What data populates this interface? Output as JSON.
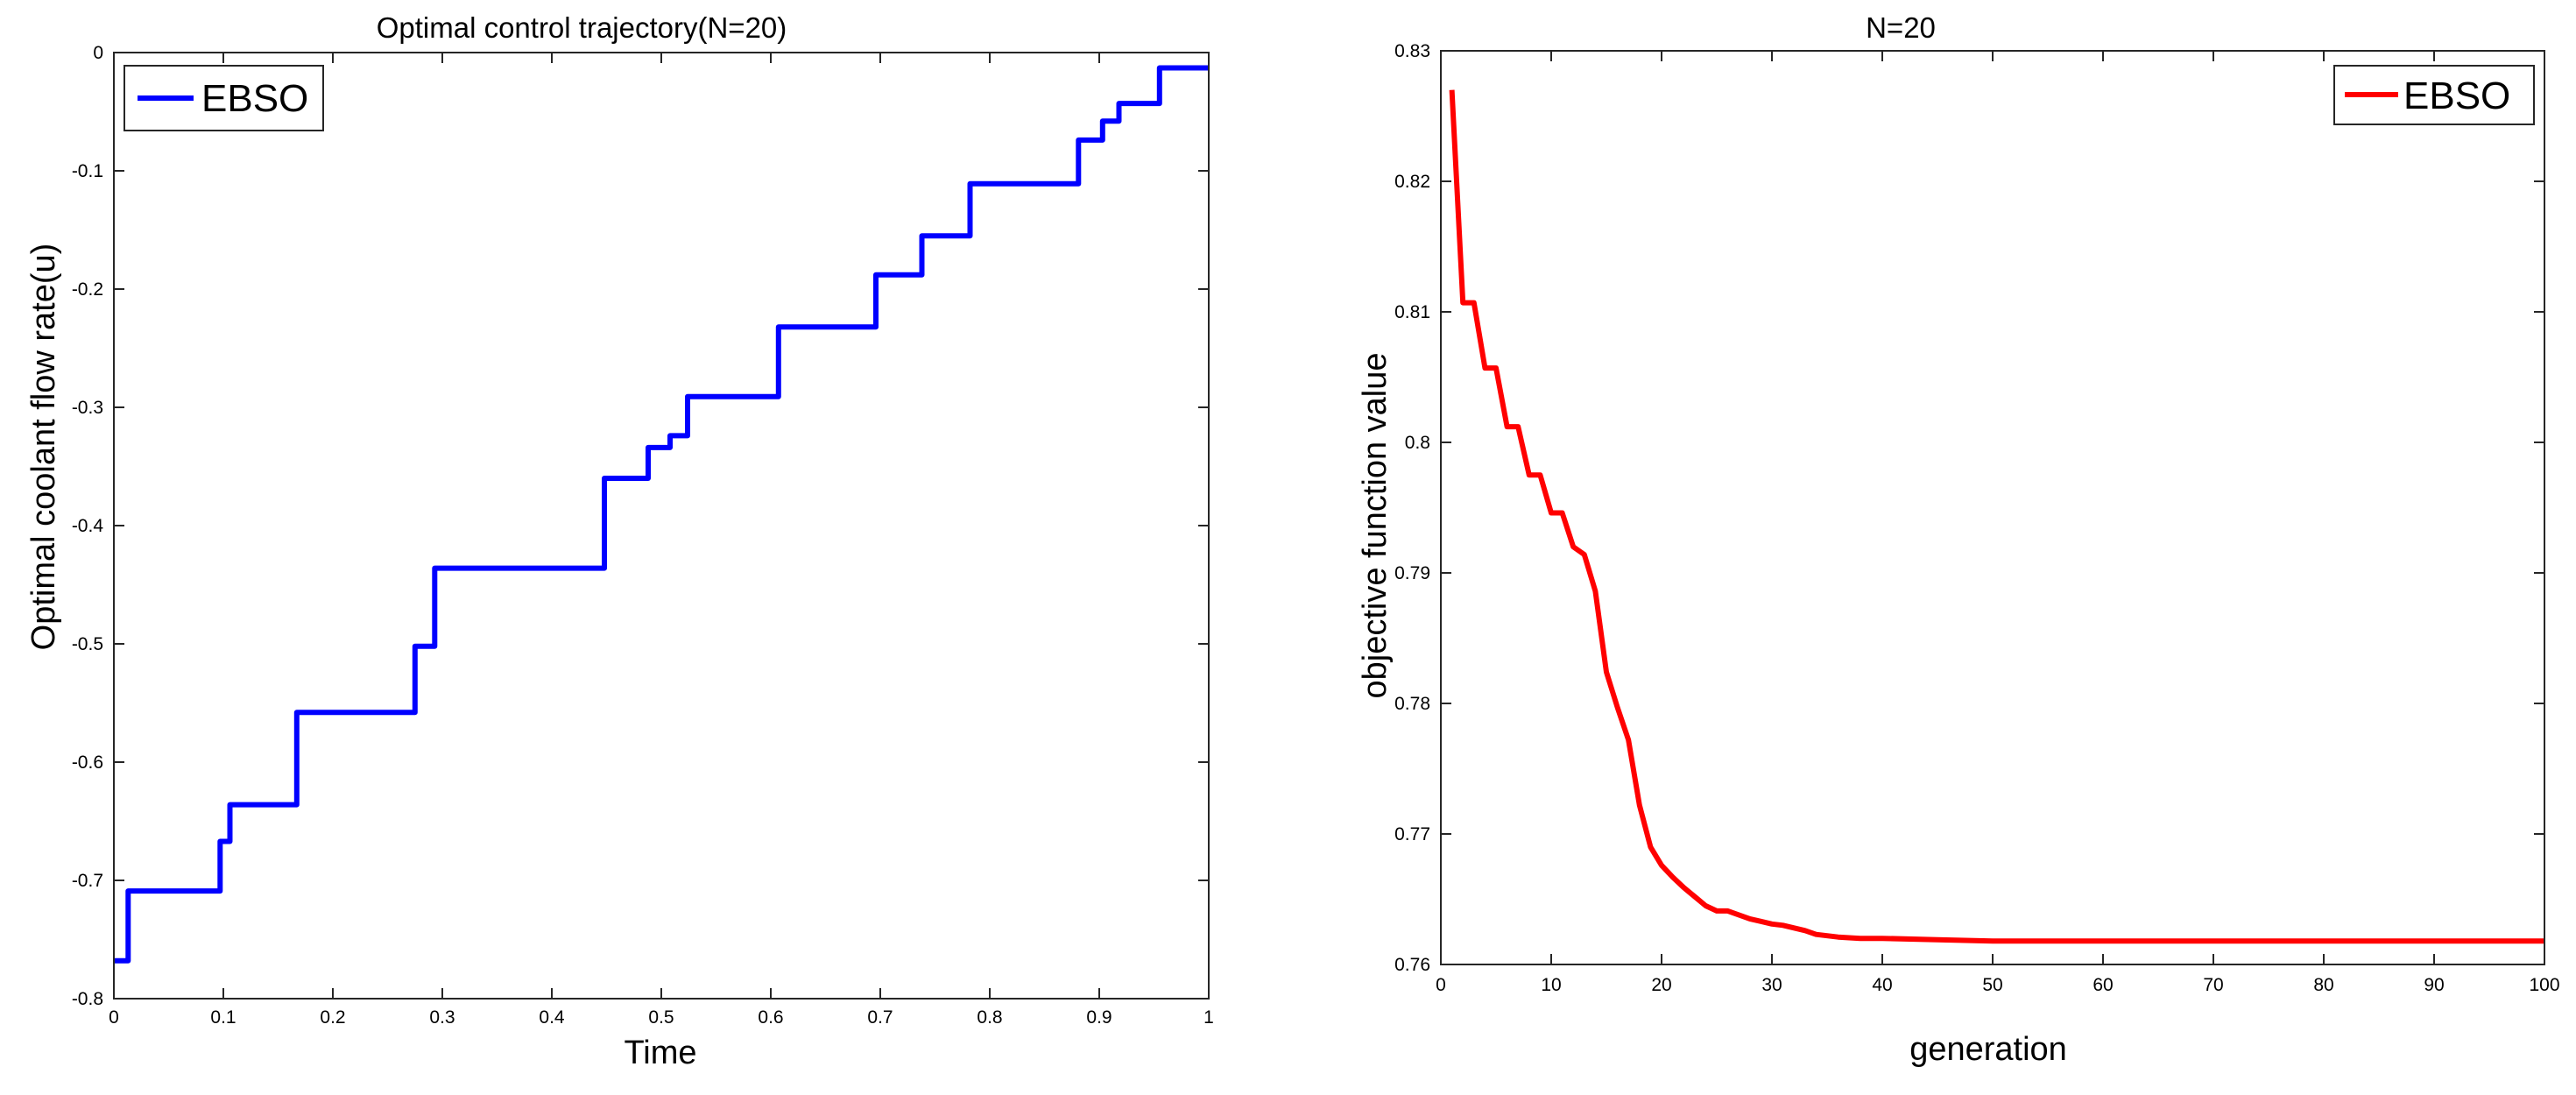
{
  "chart_data": [
    {
      "type": "line",
      "step": true,
      "title": "Optimal control trajectory(N=20)",
      "xlabel": "Time",
      "ylabel": "Optimal coolant flow rate(u)",
      "xlim": [
        0,
        1
      ],
      "ylim": [
        -0.8,
        0
      ],
      "xticks": [
        0,
        0.1,
        0.2,
        0.3,
        0.4,
        0.5,
        0.6,
        0.7,
        0.8,
        0.9,
        1
      ],
      "yticks": [
        -0.8,
        -0.7,
        -0.6,
        -0.5,
        -0.4,
        -0.3,
        -0.2,
        -0.1,
        0
      ],
      "xtick_labels": [
        "0",
        "0.1",
        "0.2",
        "0.3",
        "0.4",
        "0.5",
        "0.6",
        "0.7",
        "0.8",
        "0.9",
        "1"
      ],
      "ytick_labels": [
        "-0.8",
        "-0.7",
        "-0.6",
        "-0.5",
        "-0.4",
        "-0.3",
        "-0.2",
        "-0.1",
        "0"
      ],
      "grid": false,
      "legend_position": "top-left",
      "series": [
        {
          "name": "EBSO",
          "color": "#0000ff",
          "x": [
            0,
            0.013,
            0.013,
            0.097,
            0.097,
            0.106,
            0.106,
            0.167,
            0.167,
            0.275,
            0.275,
            0.293,
            0.293,
            0.448,
            0.448,
            0.488,
            0.488,
            0.508,
            0.508,
            0.524,
            0.524,
            0.607,
            0.607,
            0.696,
            0.696,
            0.738,
            0.738,
            0.782,
            0.782,
            0.881,
            0.881,
            0.903,
            0.903,
            0.918,
            0.918,
            0.955,
            0.955,
            1
          ],
          "y": [
            -0.768,
            -0.768,
            -0.709,
            -0.709,
            -0.667,
            -0.667,
            -0.636,
            -0.636,
            -0.558,
            -0.558,
            -0.502,
            -0.502,
            -0.436,
            -0.436,
            -0.36,
            -0.36,
            -0.334,
            -0.334,
            -0.324,
            -0.324,
            -0.291,
            -0.291,
            -0.232,
            -0.232,
            -0.188,
            -0.188,
            -0.155,
            -0.155,
            -0.111,
            -0.111,
            -0.074,
            -0.074,
            -0.058,
            -0.058,
            -0.043,
            -0.043,
            -0.013,
            -0.013
          ]
        }
      ]
    },
    {
      "type": "line",
      "title": "N=20",
      "xlabel": "generation",
      "ylabel": "objective function value",
      "xlim": [
        0,
        100
      ],
      "ylim": [
        0.76,
        0.83
      ],
      "xticks": [
        0,
        10,
        20,
        30,
        40,
        50,
        60,
        70,
        80,
        90,
        100
      ],
      "yticks": [
        0.76,
        0.77,
        0.78,
        0.79,
        0.8,
        0.81,
        0.82,
        0.83
      ],
      "xtick_labels": [
        "0",
        "10",
        "20",
        "30",
        "40",
        "50",
        "60",
        "70",
        "80",
        "90",
        "100"
      ],
      "ytick_labels": [
        "0.76",
        "0.77",
        "0.78",
        "0.79",
        "0.8",
        "0.81",
        "0.82",
        "0.83"
      ],
      "grid": false,
      "legend_position": "top-right",
      "series": [
        {
          "name": "EBSO",
          "color": "#ff0000",
          "x": [
            1,
            2,
            3,
            4,
            5,
            6,
            7,
            8,
            9,
            10,
            11,
            12,
            13,
            14,
            15,
            16,
            17,
            18,
            19,
            20,
            21,
            22,
            23,
            24,
            25,
            26,
            27,
            28,
            29,
            30,
            31,
            32,
            33,
            34,
            35,
            36,
            38,
            40,
            45,
            50,
            60,
            70,
            80,
            90,
            100
          ],
          "y": [
            0.827,
            0.8107,
            0.8107,
            0.8057,
            0.8057,
            0.8012,
            0.8012,
            0.7975,
            0.7975,
            0.7946,
            0.7946,
            0.792,
            0.7914,
            0.7886,
            0.7824,
            0.7797,
            0.7772,
            0.7722,
            0.769,
            0.7676,
            0.7667,
            0.7659,
            0.7652,
            0.7645,
            0.7641,
            0.7641,
            0.7638,
            0.7635,
            0.7633,
            0.7631,
            0.763,
            0.7628,
            0.7626,
            0.7623,
            0.7622,
            0.7621,
            0.762,
            0.762,
            0.7619,
            0.7618,
            0.7618,
            0.7618,
            0.7618,
            0.7618,
            0.7618
          ]
        }
      ]
    }
  ]
}
